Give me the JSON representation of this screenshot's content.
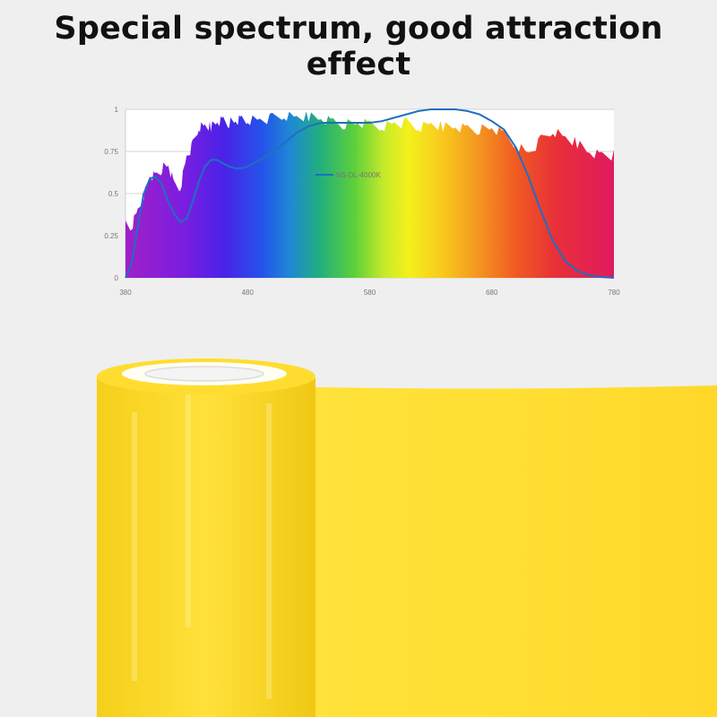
{
  "headline": "Special spectrum, good attraction effect",
  "colors": {
    "background": "#efefef",
    "curve": "#1f6fbf",
    "tape": "#ffd92a",
    "tape_core": "#ffffff"
  },
  "chart_data": {
    "type": "area",
    "title": "",
    "xlabel": "",
    "ylabel": "",
    "xlim": [
      380,
      780
    ],
    "ylim": [
      0,
      1
    ],
    "x_ticks": [
      "380",
      "480",
      "580",
      "680",
      "780"
    ],
    "y_ticks": [
      "0",
      "0.25",
      "0.5",
      "0.75",
      "1"
    ],
    "grid": true,
    "legend_position": "center",
    "series": [
      {
        "name": "NS-DL-4000K",
        "type": "line",
        "x": [
          380,
          385,
          390,
          395,
          400,
          405,
          410,
          415,
          420,
          425,
          430,
          435,
          440,
          445,
          450,
          455,
          460,
          465,
          470,
          475,
          480,
          490,
          500,
          510,
          520,
          530,
          540,
          550,
          560,
          570,
          580,
          590,
          600,
          610,
          620,
          630,
          640,
          650,
          660,
          670,
          680,
          690,
          700,
          710,
          720,
          730,
          740,
          750,
          760,
          770,
          780
        ],
        "y": [
          0.0,
          0.08,
          0.3,
          0.5,
          0.59,
          0.6,
          0.55,
          0.45,
          0.38,
          0.33,
          0.35,
          0.45,
          0.57,
          0.66,
          0.7,
          0.7,
          0.68,
          0.66,
          0.65,
          0.65,
          0.66,
          0.7,
          0.74,
          0.8,
          0.86,
          0.9,
          0.92,
          0.92,
          0.92,
          0.92,
          0.92,
          0.93,
          0.95,
          0.97,
          0.99,
          1.0,
          1.0,
          1.0,
          0.99,
          0.97,
          0.93,
          0.88,
          0.77,
          0.6,
          0.4,
          0.22,
          0.1,
          0.04,
          0.015,
          0.005,
          0.0
        ]
      },
      {
        "name": "",
        "type": "spectrum-area",
        "x": [
          380,
          385,
          390,
          395,
          400,
          405,
          410,
          415,
          420,
          425,
          430,
          435,
          440,
          445,
          450,
          455,
          460,
          465,
          470,
          475,
          480,
          490,
          500,
          510,
          520,
          530,
          540,
          550,
          560,
          570,
          580,
          590,
          600,
          610,
          620,
          630,
          640,
          650,
          660,
          670,
          680,
          690,
          700,
          710,
          720,
          730,
          740,
          750,
          760,
          770,
          780
        ],
        "y": [
          0.34,
          0.33,
          0.43,
          0.52,
          0.64,
          0.64,
          0.68,
          0.7,
          0.58,
          0.57,
          0.75,
          0.82,
          0.92,
          0.93,
          0.93,
          0.96,
          0.97,
          0.95,
          0.96,
          0.97,
          0.97,
          0.97,
          0.98,
          0.99,
          0.98,
          0.99,
          0.98,
          0.96,
          0.94,
          0.95,
          0.94,
          0.93,
          0.95,
          0.95,
          0.92,
          0.94,
          0.93,
          0.93,
          0.92,
          0.91,
          0.92,
          0.88,
          0.82,
          0.77,
          0.85,
          0.9,
          0.86,
          0.83,
          0.78,
          0.76,
          0.76
        ]
      }
    ]
  }
}
